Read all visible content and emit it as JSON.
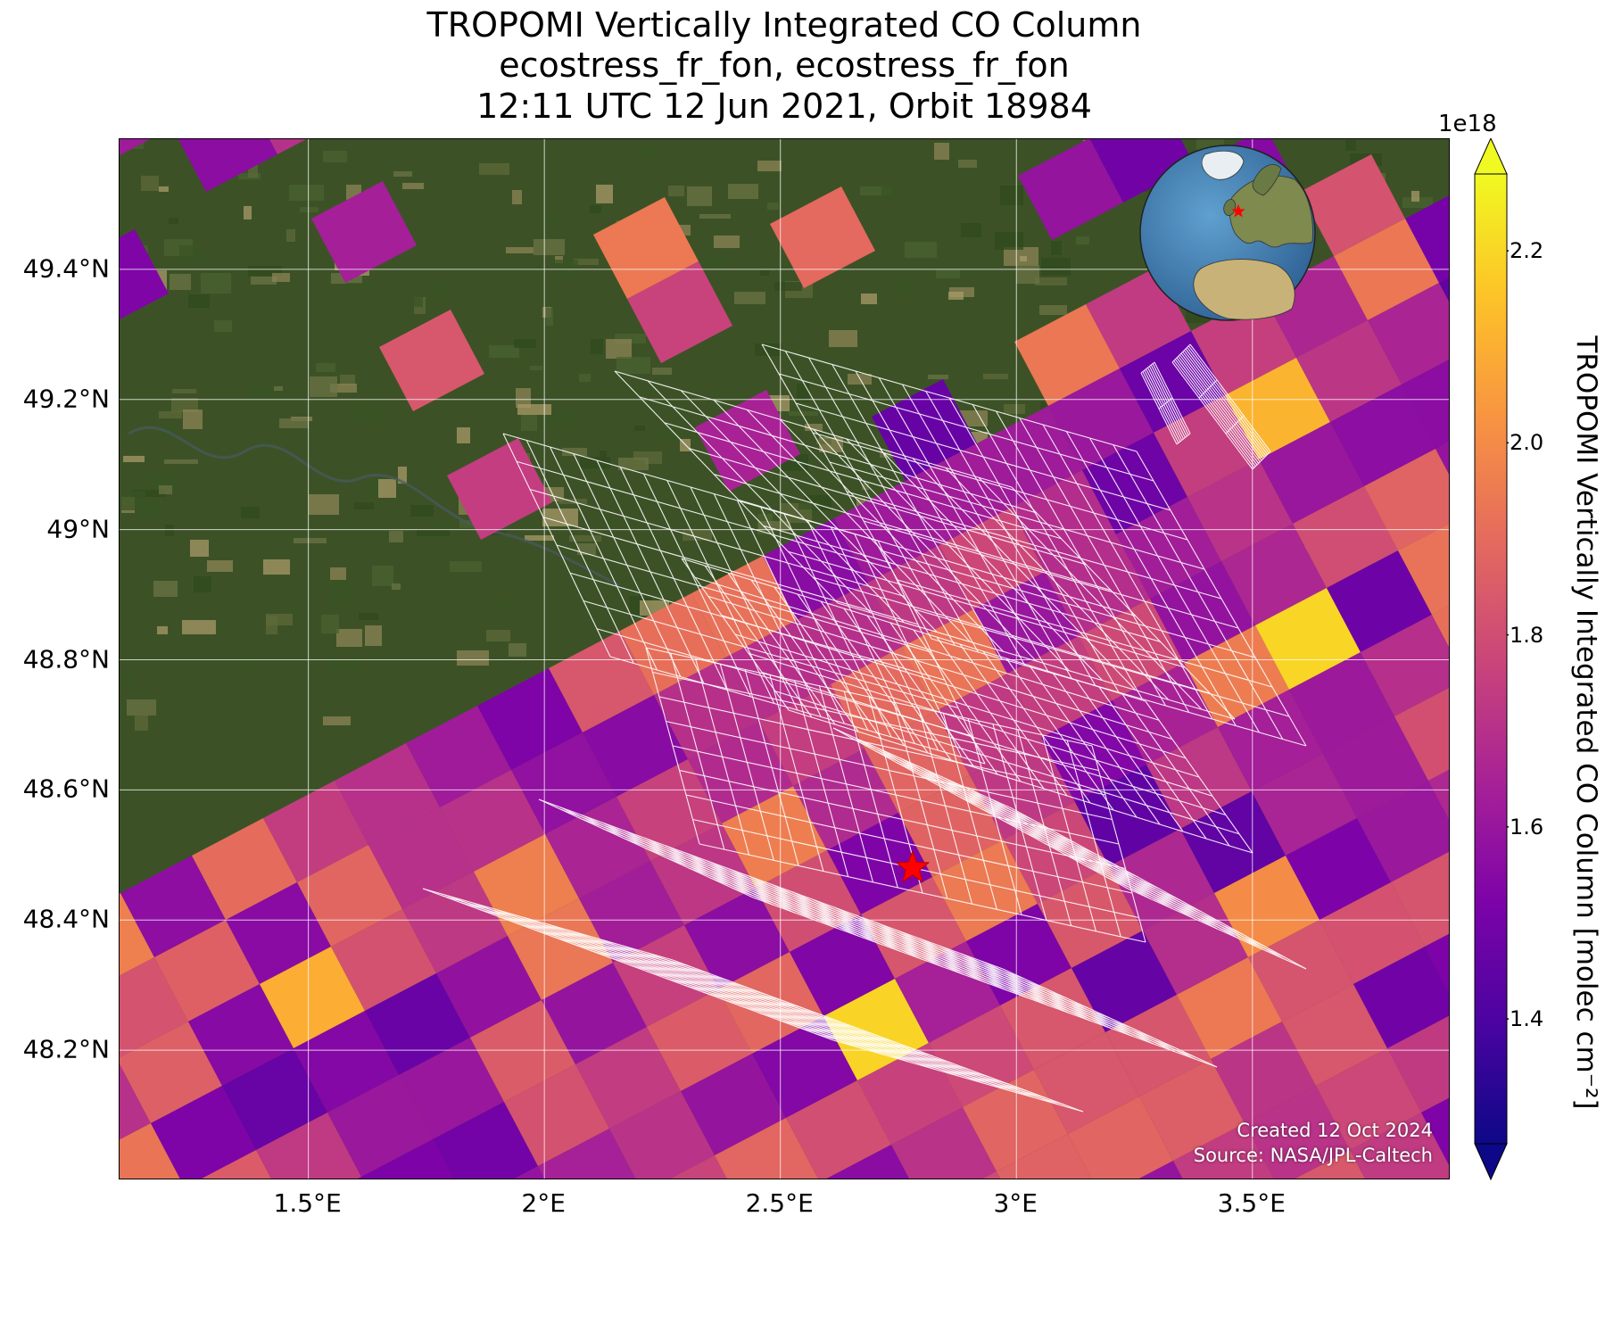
{
  "title": {
    "line1": "TROPOMI Vertically Integrated CO Column",
    "line2": "ecostress_fr_fon, ecostress_fr_fon",
    "line3": "12:11 UTC 12 Jun 2021, Orbit 18984"
  },
  "axes": {
    "x_ticks": [
      {
        "value": 1.5,
        "label": "1.5°E"
      },
      {
        "value": 2.0,
        "label": "2°E"
      },
      {
        "value": 2.5,
        "label": "2.5°E"
      },
      {
        "value": 3.0,
        "label": "3°E"
      },
      {
        "value": 3.5,
        "label": "3.5°E"
      }
    ],
    "y_ticks": [
      {
        "value": 49.4,
        "label": "49.4°N"
      },
      {
        "value": 49.2,
        "label": "49.2°N"
      },
      {
        "value": 49.0,
        "label": "49°N"
      },
      {
        "value": 48.8,
        "label": "48.8°N"
      },
      {
        "value": 48.6,
        "label": "48.6°N"
      },
      {
        "value": 48.4,
        "label": "48.4°N"
      },
      {
        "value": 48.2,
        "label": "48.2°N"
      }
    ],
    "lon_range": [
      1.1,
      3.92
    ],
    "lat_range": [
      48.0,
      49.6
    ]
  },
  "target_marker": {
    "lon": 2.78,
    "lat": 48.48,
    "symbol": "star",
    "color": "#ff0000"
  },
  "colorbar": {
    "label": "TROPOMI Vertically Integrated CO Column [molec cm⁻²]",
    "exponent": "1e18",
    "range": [
      1.27,
      2.28
    ],
    "ticks": [
      {
        "value": 1.4,
        "label": "1.4"
      },
      {
        "value": 1.6,
        "label": "1.6"
      },
      {
        "value": 1.8,
        "label": "1.8"
      },
      {
        "value": 2.0,
        "label": "2.0"
      },
      {
        "value": 2.2,
        "label": "2.2"
      }
    ],
    "colormap": "plasma",
    "extend": "both"
  },
  "credits": {
    "created": "Created 12 Oct 2024",
    "source": "Source: NASA/JPL-Caltech"
  },
  "inset_globe": {
    "marker_color": "#ff0000"
  },
  "colors": {
    "background_land": "#3c5226",
    "grid_line": "#ffffff",
    "footprint_outline": "#ffffff"
  }
}
